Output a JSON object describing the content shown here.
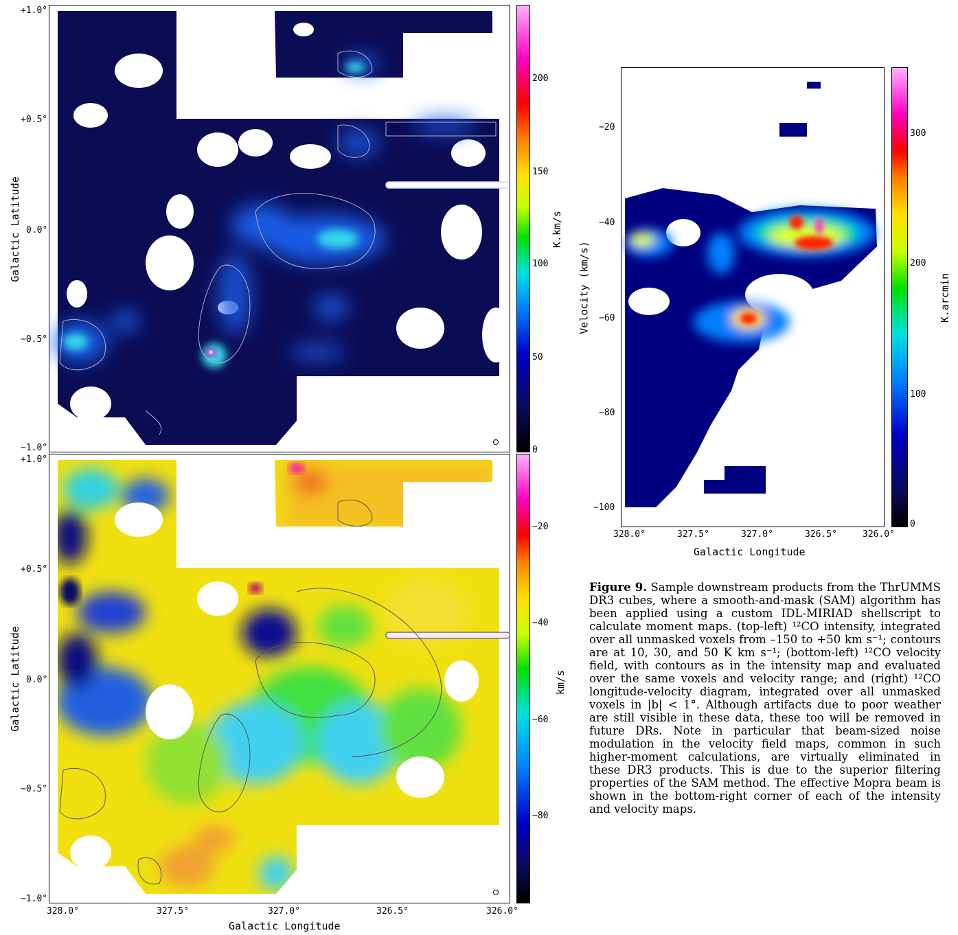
{
  "top_left": {
    "y_ticks": [
      "+1.0°",
      "+0.5°",
      "0.0°",
      "−0.5°",
      "−1.0°"
    ],
    "y_label": "Galactic Latitude",
    "colorbar_ticks": [
      "200",
      "150",
      "100",
      "50",
      "0"
    ],
    "colorbar_label": "K.km/s",
    "colormap": [
      "#000000",
      "#0a0a5a",
      "#0000c8",
      "#0080ff",
      "#00e0e0",
      "#00e000",
      "#c8ff00",
      "#ffe000",
      "#ff8000",
      "#ff0000",
      "#ff00c0",
      "#ffb0ff"
    ]
  },
  "bottom_left": {
    "y_ticks": [
      "+1.0°",
      "+0.5°",
      "0.0°",
      "−0.5°",
      "−1.0°"
    ],
    "y_label": "Galactic Latitude",
    "x_ticks": [
      "328.0°",
      "327.5°",
      "327.0°",
      "326.5°",
      "326.0°"
    ],
    "x_label": "Galactic Longitude",
    "colorbar_ticks": [
      "−20",
      "−40",
      "−60",
      "−80"
    ],
    "colorbar_label": "km/s"
  },
  "right": {
    "y_ticks": [
      "−20",
      "−40",
      "−60",
      "−80",
      "−100"
    ],
    "y_label": "Velocity (km/s)",
    "x_ticks": [
      "328.0°",
      "327.5°",
      "327.0°",
      "326.5°",
      "326.0°"
    ],
    "x_label": "Galactic Longitude",
    "colorbar_ticks": [
      "300",
      "200",
      "100",
      "0"
    ],
    "colorbar_label": "K.arcmin"
  },
  "caption": {
    "label": "Figure 9.",
    "text": "Sample downstream products from the ThrUMMS DR3 cubes, where a smooth-and-mask (SAM) algorithm has been applied using a custom IDL-MIRIAD shellscript to calculate moment maps. (top-left) ¹²CO intensity, integrated over all unmasked voxels from –150 to +50 km s⁻¹; contours are at 10, 30, and 50 K km s⁻¹; (bottom-left) ¹²CO velocity field, with contours as in the intensity map and evaluated over the same voxels and velocity range; and (right) ¹²CO longitude-velocity diagram, integrated over all unmasked voxels in |b| < 1°. Although artifacts due to poor weather are still visible in these data, these too will be removed in future DRs. Note in particular that beam-sized noise modulation in the velocity field maps, common in such higher-moment calculations, are virtually eliminated in these DR3 products. This is due to the superior filtering properties of the SAM method. The effective Mopra beam is shown in the bottom-right corner of each of the intensity and velocity maps."
  }
}
